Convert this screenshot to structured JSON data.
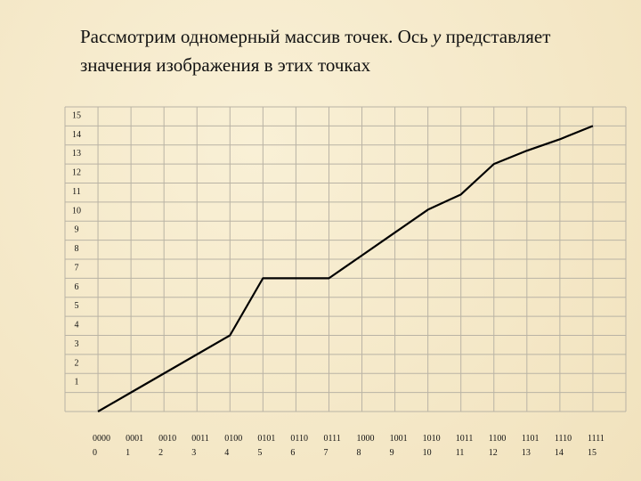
{
  "title": {
    "before": "Рассмотрим одномерный массив точек. Ось ",
    "variable": "y",
    "after": " представляет",
    "line2": "значения изображения в этих точках"
  },
  "chart_data": {
    "type": "line",
    "categories": [
      "0000",
      "0001",
      "0010",
      "0011",
      "0100",
      "0101",
      "0110",
      "0111",
      "1000",
      "1001",
      "1010",
      "1011",
      "1100",
      "1101",
      "1110",
      "1111"
    ],
    "x": [
      0,
      1,
      2,
      3,
      4,
      5,
      6,
      7,
      8,
      9,
      10,
      11,
      12,
      13,
      14,
      15
    ],
    "values": [
      0,
      1,
      2,
      3,
      4,
      7,
      7,
      7,
      8.2,
      9.4,
      10.6,
      11.4,
      13,
      13.7,
      14.3,
      15
    ],
    "color": "#000000",
    "xlim": [
      -1,
      16
    ],
    "ylim": [
      0,
      16
    ],
    "yticks": [
      1,
      2,
      3,
      4,
      5,
      6,
      7,
      8,
      9,
      10,
      11,
      12,
      13,
      14,
      15
    ],
    "grid": true
  }
}
